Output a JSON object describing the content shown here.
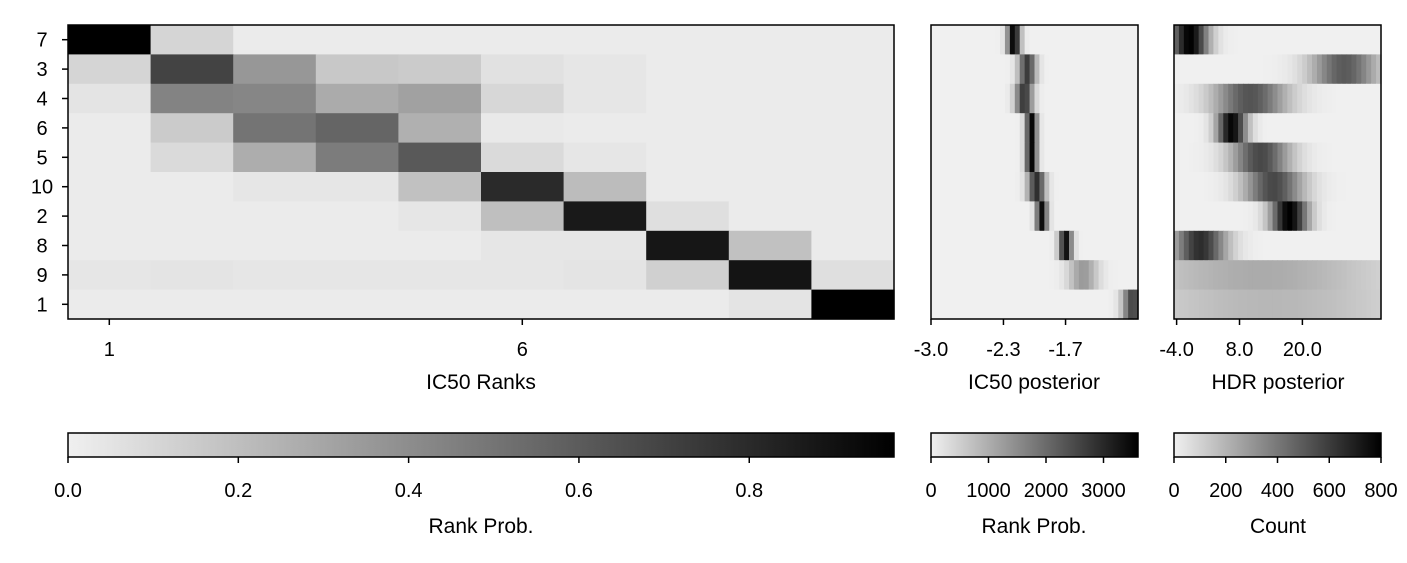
{
  "chart_data": [
    {
      "type": "heatmap",
      "title": "",
      "xlabel": "IC50 Ranks",
      "ylabel": "",
      "rows": [
        "7",
        "3",
        "4",
        "6",
        "5",
        "10",
        "2",
        "8",
        "9",
        "1"
      ],
      "columns": [
        "1",
        "2",
        "3",
        "4",
        "5",
        "6",
        "7",
        "8",
        "9",
        "10"
      ],
      "x_ticks": [
        {
          "label": "1",
          "col": 1
        },
        {
          "label": "6",
          "col": 6
        }
      ],
      "values": [
        [
          0.97,
          0.11,
          0.02,
          0.02,
          0.02,
          0.02,
          0.02,
          0.02,
          0.02,
          0.02
        ],
        [
          0.11,
          0.7,
          0.36,
          0.16,
          0.15,
          0.06,
          0.04,
          0.02,
          0.02,
          0.02
        ],
        [
          0.05,
          0.44,
          0.43,
          0.28,
          0.32,
          0.1,
          0.04,
          0.02,
          0.02,
          0.02
        ],
        [
          0.02,
          0.15,
          0.5,
          0.56,
          0.26,
          0.03,
          0.02,
          0.02,
          0.02,
          0.02
        ],
        [
          0.02,
          0.09,
          0.27,
          0.47,
          0.61,
          0.09,
          0.04,
          0.02,
          0.02,
          0.02
        ],
        [
          0.02,
          0.02,
          0.04,
          0.04,
          0.19,
          0.8,
          0.21,
          0.02,
          0.02,
          0.02
        ],
        [
          0.02,
          0.02,
          0.02,
          0.02,
          0.04,
          0.2,
          0.87,
          0.07,
          0.02,
          0.02
        ],
        [
          0.02,
          0.02,
          0.02,
          0.02,
          0.02,
          0.04,
          0.04,
          0.88,
          0.19,
          0.02
        ],
        [
          0.04,
          0.05,
          0.04,
          0.04,
          0.04,
          0.04,
          0.05,
          0.13,
          0.89,
          0.07
        ],
        [
          0.02,
          0.02,
          0.02,
          0.02,
          0.02,
          0.02,
          0.02,
          0.02,
          0.05,
          0.97
        ]
      ],
      "colorbar": {
        "label": "Rank Prob.",
        "min": 0,
        "max": 0.97,
        "ticks": [
          "0.0",
          "0.2",
          "0.4",
          "0.6",
          "0.8"
        ],
        "tick_values": [
          0,
          0.2,
          0.4,
          0.6,
          0.8
        ]
      },
      "colormap": [
        "#f0f0f0",
        "#000000"
      ]
    },
    {
      "type": "heatmap",
      "title": "",
      "xlabel": "IC50 posterior",
      "ylabel": "",
      "xlim": [
        -3.0,
        -1.0
      ],
      "x_ticks": [
        "-3.0",
        "-2.3",
        "-1.7"
      ],
      "x_tick_values": [
        -3.0,
        -2.3,
        -1.7
      ],
      "rows": [
        "7",
        "3",
        "4",
        "6",
        "5",
        "10",
        "2",
        "8",
        "9",
        "1"
      ],
      "row_peaks": [
        {
          "center": -2.2,
          "width": 0.045,
          "peak": 3600
        },
        {
          "center": -2.07,
          "width": 0.06,
          "peak": 2700
        },
        {
          "center": -2.1,
          "width": 0.06,
          "peak": 2800
        },
        {
          "center": -2.03,
          "width": 0.04,
          "peak": 3500
        },
        {
          "center": -2.03,
          "width": 0.04,
          "peak": 3500
        },
        {
          "center": -1.98,
          "width": 0.06,
          "peak": 2900
        },
        {
          "center": -1.93,
          "width": 0.04,
          "peak": 3400
        },
        {
          "center": -1.7,
          "width": 0.045,
          "peak": 3400
        },
        {
          "center": -1.53,
          "width": 0.1,
          "peak": 1300
        },
        {
          "center": -1.05,
          "width": 0.07,
          "peak": 2600
        }
      ],
      "colorbar": {
        "label": "Rank Prob.",
        "min": 0,
        "max": 3600,
        "ticks": [
          "0",
          "1000",
          "2000",
          "3000"
        ],
        "tick_values": [
          0,
          1000,
          2000,
          3000
        ]
      },
      "colormap": [
        "#f0f0f0",
        "#000000"
      ]
    },
    {
      "type": "heatmap",
      "title": "",
      "xlabel": "HDR posterior",
      "ylabel": "",
      "xlim": [
        -4.5,
        35.0
      ],
      "x_ticks": [
        "-4.0",
        "8.0",
        "20.0"
      ],
      "x_tick_values": [
        -4.0,
        8.0,
        20.0
      ],
      "rows": [
        "7",
        "3",
        "4",
        "6",
        "5",
        "10",
        "2",
        "8",
        "9",
        "1"
      ],
      "row_peaks": [
        {
          "center": -1.5,
          "width": 2.5,
          "peak": 800
        },
        {
          "center": 28.0,
          "width": 4.5,
          "peak": 500
        },
        {
          "center": 10.0,
          "width": 5.0,
          "peak": 520
        },
        {
          "center": 6.5,
          "width": 2.0,
          "peak": 780
        },
        {
          "center": 12.0,
          "width": 4.0,
          "peak": 560
        },
        {
          "center": 14.5,
          "width": 4.0,
          "peak": 560
        },
        {
          "center": 17.5,
          "width": 2.5,
          "peak": 800
        },
        {
          "center": 0.5,
          "width": 3.5,
          "peak": 650
        },
        {
          "center": 12.0,
          "width": 18.0,
          "peak": 230
        },
        {
          "center": 14.0,
          "width": 20.0,
          "peak": 190
        }
      ],
      "colorbar": {
        "label": "Count",
        "min": 0,
        "max": 800,
        "ticks": [
          "0",
          "200",
          "400",
          "600",
          "800"
        ],
        "tick_values": [
          0,
          200,
          400,
          600,
          800
        ]
      },
      "colormap": [
        "#f0f0f0",
        "#000000"
      ]
    }
  ]
}
